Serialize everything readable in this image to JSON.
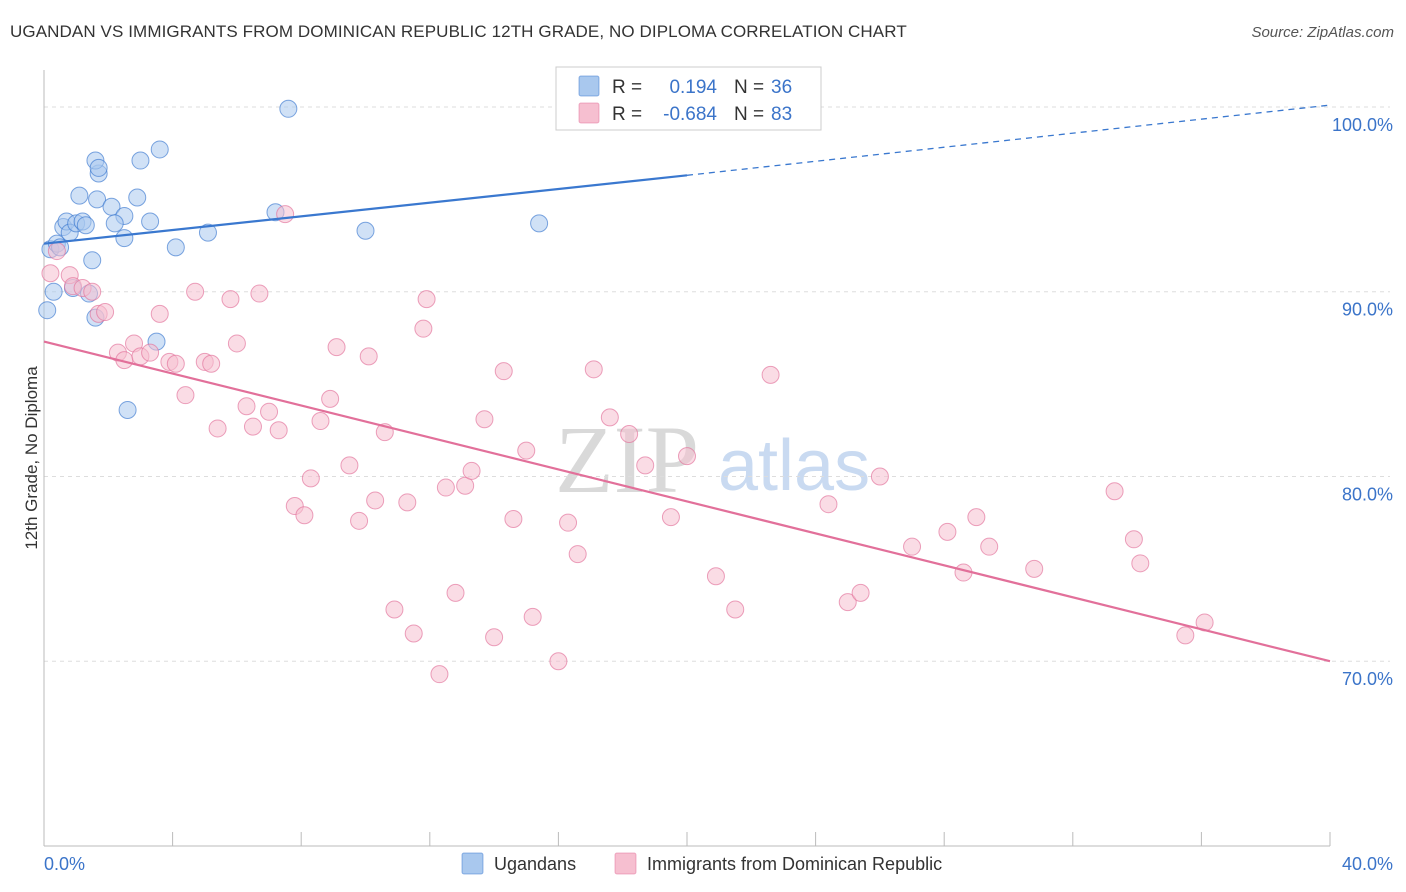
{
  "title": "UGANDAN VS IMMIGRANTS FROM DOMINICAN REPUBLIC 12TH GRADE, NO DIPLOMA CORRELATION CHART",
  "source": "Source: ZipAtlas.com",
  "watermark": {
    "zip": "ZIP",
    "atlas": "atlas"
  },
  "colors": {
    "blue": "#3a78cf",
    "blue_fill": "#a9c8ee",
    "pink": "#e2709a",
    "pink_fill": "#f6bfd0",
    "tick_label": "#3b74c9",
    "grid": "#dddddd"
  },
  "legend_box": {
    "rows": [
      {
        "r_label": "R =",
        "r_value": "0.194",
        "n_label": "N =",
        "n_value": "36",
        "color": "blue"
      },
      {
        "r_label": "R =",
        "r_value": "-0.684",
        "n_label": "N =",
        "n_value": "83",
        "color": "pink"
      }
    ]
  },
  "chart_data": {
    "type": "scatter",
    "title": "UGANDAN VS IMMIGRANTS FROM DOMINICAN REPUBLIC 12TH GRADE, NO DIPLOMA CORRELATION CHART",
    "xlabel": "",
    "ylabel": "12th Grade, No Diploma",
    "xlim": [
      0,
      40
    ],
    "ylim": [
      60,
      102
    ],
    "x_tick_labels": [
      {
        "value": 0,
        "label": "0.0%"
      },
      {
        "value": 40,
        "label": "40.0%"
      }
    ],
    "y_tick_labels": [
      {
        "value": 100,
        "label": "100.0%"
      },
      {
        "value": 90,
        "label": "90.0%"
      },
      {
        "value": 80,
        "label": "80.0%"
      },
      {
        "value": 70,
        "label": "70.0%"
      }
    ],
    "grid": true,
    "legend_position": "bottom",
    "series": [
      {
        "name": "Ugandans",
        "color": "blue",
        "trend": {
          "x0": 0,
          "y0": 92.6,
          "x1": 20,
          "y1": 96.3,
          "dashed_to_x": 40,
          "dashed_to_y": 100.1
        },
        "points": [
          [
            0.1,
            89.0
          ],
          [
            0.2,
            92.3
          ],
          [
            0.4,
            92.6
          ],
          [
            0.5,
            92.4
          ],
          [
            0.6,
            93.5
          ],
          [
            0.7,
            93.8
          ],
          [
            0.8,
            93.2
          ],
          [
            0.9,
            90.2
          ],
          [
            1.0,
            93.7
          ],
          [
            1.1,
            95.2
          ],
          [
            1.2,
            93.8
          ],
          [
            1.3,
            93.6
          ],
          [
            1.4,
            89.9
          ],
          [
            1.5,
            91.7
          ],
          [
            1.7,
            96.4
          ],
          [
            1.6,
            88.6
          ],
          [
            1.65,
            95.0
          ],
          [
            1.6,
            97.1
          ],
          [
            1.7,
            96.7
          ],
          [
            2.1,
            94.6
          ],
          [
            2.5,
            94.1
          ],
          [
            2.5,
            92.9
          ],
          [
            2.6,
            83.6
          ],
          [
            2.9,
            95.1
          ],
          [
            3.0,
            97.1
          ],
          [
            3.3,
            93.8
          ],
          [
            3.5,
            87.3
          ],
          [
            3.6,
            97.7
          ],
          [
            4.1,
            92.4
          ],
          [
            5.1,
            93.2
          ],
          [
            7.2,
            94.3
          ],
          [
            7.6,
            99.9
          ],
          [
            10.0,
            93.3
          ],
          [
            15.4,
            93.7
          ],
          [
            2.2,
            93.7
          ],
          [
            0.3,
            90.0
          ]
        ]
      },
      {
        "name": "Immigrants from Dominican Republic",
        "color": "pink",
        "trend": {
          "x0": 0,
          "y0": 87.3,
          "x1": 40,
          "y1": 70.0
        },
        "points": [
          [
            0.2,
            91.0
          ],
          [
            0.4,
            92.2
          ],
          [
            0.8,
            90.9
          ],
          [
            0.9,
            90.3
          ],
          [
            1.2,
            90.2
          ],
          [
            1.5,
            90.0
          ],
          [
            1.7,
            88.8
          ],
          [
            1.9,
            88.9
          ],
          [
            2.3,
            86.7
          ],
          [
            2.5,
            86.3
          ],
          [
            2.8,
            87.2
          ],
          [
            3.0,
            86.5
          ],
          [
            3.3,
            86.7
          ],
          [
            3.6,
            88.8
          ],
          [
            3.9,
            86.2
          ],
          [
            4.1,
            86.1
          ],
          [
            4.4,
            84.4
          ],
          [
            4.7,
            90.0
          ],
          [
            5.0,
            86.2
          ],
          [
            5.2,
            86.1
          ],
          [
            5.4,
            82.6
          ],
          [
            5.8,
            89.6
          ],
          [
            6.0,
            87.2
          ],
          [
            6.3,
            83.8
          ],
          [
            6.5,
            82.7
          ],
          [
            6.7,
            89.9
          ],
          [
            7.0,
            83.5
          ],
          [
            7.3,
            82.5
          ],
          [
            7.5,
            94.2
          ],
          [
            7.8,
            78.4
          ],
          [
            8.1,
            77.9
          ],
          [
            8.3,
            79.9
          ],
          [
            8.6,
            83.0
          ],
          [
            8.9,
            84.2
          ],
          [
            9.1,
            87.0
          ],
          [
            9.5,
            80.6
          ],
          [
            9.8,
            77.6
          ],
          [
            10.1,
            86.5
          ],
          [
            10.3,
            78.7
          ],
          [
            10.6,
            82.4
          ],
          [
            10.9,
            72.8
          ],
          [
            11.3,
            78.6
          ],
          [
            11.5,
            71.5
          ],
          [
            11.8,
            88.0
          ],
          [
            11.9,
            89.6
          ],
          [
            12.3,
            69.3
          ],
          [
            12.5,
            79.4
          ],
          [
            12.8,
            73.7
          ],
          [
            13.1,
            79.5
          ],
          [
            13.3,
            80.3
          ],
          [
            13.7,
            83.1
          ],
          [
            14.0,
            71.3
          ],
          [
            14.3,
            85.7
          ],
          [
            14.6,
            77.7
          ],
          [
            15.0,
            81.4
          ],
          [
            15.2,
            72.4
          ],
          [
            16.0,
            70.0
          ],
          [
            16.3,
            77.5
          ],
          [
            16.6,
            75.8
          ],
          [
            17.1,
            85.8
          ],
          [
            17.6,
            83.2
          ],
          [
            18.2,
            82.3
          ],
          [
            18.7,
            80.6
          ],
          [
            19.5,
            77.8
          ],
          [
            20.0,
            81.1
          ],
          [
            20.9,
            74.6
          ],
          [
            21.5,
            72.8
          ],
          [
            22.6,
            85.5
          ],
          [
            24.4,
            78.5
          ],
          [
            25.0,
            73.2
          ],
          [
            25.4,
            73.7
          ],
          [
            26.0,
            80.0
          ],
          [
            27.0,
            76.2
          ],
          [
            28.1,
            77.0
          ],
          [
            28.6,
            74.8
          ],
          [
            29.0,
            77.8
          ],
          [
            29.4,
            76.2
          ],
          [
            30.8,
            75.0
          ],
          [
            33.3,
            79.2
          ],
          [
            33.9,
            76.6
          ],
          [
            34.1,
            75.3
          ],
          [
            35.5,
            71.4
          ],
          [
            36.1,
            72.1
          ]
        ]
      }
    ]
  },
  "bottom_legend": [
    {
      "label": "Ugandans",
      "color": "blue"
    },
    {
      "label": "Immigrants from Dominican Republic",
      "color": "pink"
    }
  ]
}
